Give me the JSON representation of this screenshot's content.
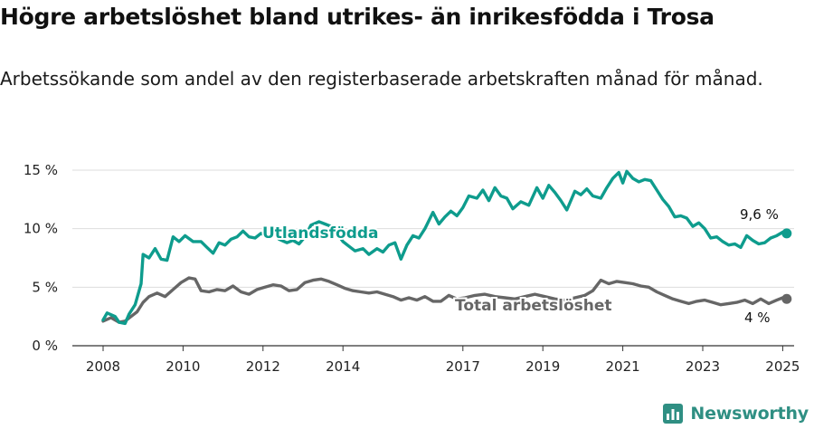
{
  "header": {
    "title": "Högre arbetslöshet bland utrikes- än inrikesfödda i Trosa",
    "subtitle": "Arbetssökande som andel av den registerbaserade arbetskraften månad för månad."
  },
  "brand": {
    "name": "Newsworthy",
    "color": "#2f8f83"
  },
  "colors": {
    "foreign": "#0e9c8d",
    "total": "#666666",
    "grid": "#dddddd",
    "axis": "#333333"
  },
  "chart_data": {
    "type": "line",
    "xlabel": "",
    "ylabel": "",
    "ylim": [
      0,
      15
    ],
    "xlim": [
      2008,
      2025.5
    ],
    "y_ticks": [
      0,
      5,
      10,
      15
    ],
    "y_tick_labels": [
      "0 %",
      "5 %",
      "10 %",
      "15 %"
    ],
    "x_ticks": [
      2008,
      2010,
      2012,
      2014,
      2017,
      2019,
      2021,
      2023,
      2025
    ],
    "x_tick_labels": [
      "2008",
      "2010",
      "2012",
      "2014",
      "2017",
      "2019",
      "2021",
      "2023",
      "2025"
    ],
    "grid": true,
    "series": [
      {
        "name": "Utlandsfödda",
        "end_label": "9,6 %",
        "points": [
          [
            2008.0,
            2.2
          ],
          [
            2008.1,
            2.8
          ],
          [
            2008.3,
            2.5
          ],
          [
            2008.4,
            2.0
          ],
          [
            2008.55,
            1.9
          ],
          [
            2008.65,
            2.7
          ],
          [
            2008.8,
            3.5
          ],
          [
            2008.95,
            5.3
          ],
          [
            2009.0,
            7.8
          ],
          [
            2009.15,
            7.5
          ],
          [
            2009.3,
            8.3
          ],
          [
            2009.45,
            7.4
          ],
          [
            2009.6,
            7.3
          ],
          [
            2009.75,
            9.3
          ],
          [
            2009.9,
            8.9
          ],
          [
            2010.05,
            9.4
          ],
          [
            2010.25,
            8.9
          ],
          [
            2010.45,
            8.9
          ],
          [
            2010.6,
            8.4
          ],
          [
            2010.75,
            7.9
          ],
          [
            2010.9,
            8.8
          ],
          [
            2011.05,
            8.6
          ],
          [
            2011.2,
            9.1
          ],
          [
            2011.35,
            9.3
          ],
          [
            2011.5,
            9.8
          ],
          [
            2011.65,
            9.3
          ],
          [
            2011.8,
            9.2
          ],
          [
            2011.95,
            9.6
          ],
          [
            2012.1,
            9.3
          ],
          [
            2012.25,
            9.7
          ],
          [
            2012.4,
            9.1
          ],
          [
            2012.6,
            8.8
          ],
          [
            2012.75,
            9.0
          ],
          [
            2012.9,
            8.7
          ],
          [
            2013.05,
            9.3
          ],
          [
            2013.2,
            10.3
          ],
          [
            2013.4,
            10.6
          ],
          [
            2013.55,
            10.4
          ],
          [
            2013.7,
            10.2
          ],
          [
            2013.85,
            9.6
          ],
          [
            2014.0,
            8.9
          ],
          [
            2014.15,
            8.5
          ],
          [
            2014.3,
            8.1
          ],
          [
            2014.5,
            8.3
          ],
          [
            2014.65,
            7.8
          ],
          [
            2014.85,
            8.3
          ],
          [
            2015.0,
            8.0
          ],
          [
            2015.15,
            8.6
          ],
          [
            2015.3,
            8.8
          ],
          [
            2015.45,
            7.4
          ],
          [
            2015.6,
            8.6
          ],
          [
            2015.75,
            9.4
          ],
          [
            2015.9,
            9.2
          ],
          [
            2016.05,
            10.0
          ],
          [
            2016.25,
            11.4
          ],
          [
            2016.4,
            10.4
          ],
          [
            2016.55,
            11.0
          ],
          [
            2016.7,
            11.5
          ],
          [
            2016.85,
            11.1
          ],
          [
            2017.0,
            11.8
          ],
          [
            2017.15,
            12.8
          ],
          [
            2017.35,
            12.6
          ],
          [
            2017.5,
            13.3
          ],
          [
            2017.65,
            12.4
          ],
          [
            2017.8,
            13.5
          ],
          [
            2017.95,
            12.8
          ],
          [
            2018.1,
            12.6
          ],
          [
            2018.25,
            11.7
          ],
          [
            2018.45,
            12.3
          ],
          [
            2018.65,
            12.0
          ],
          [
            2018.85,
            13.5
          ],
          [
            2019.0,
            12.6
          ],
          [
            2019.15,
            13.7
          ],
          [
            2019.3,
            13.1
          ],
          [
            2019.45,
            12.4
          ],
          [
            2019.6,
            11.6
          ],
          [
            2019.8,
            13.2
          ],
          [
            2019.95,
            12.9
          ],
          [
            2020.1,
            13.4
          ],
          [
            2020.25,
            12.8
          ],
          [
            2020.45,
            12.6
          ],
          [
            2020.6,
            13.5
          ],
          [
            2020.75,
            14.3
          ],
          [
            2020.9,
            14.8
          ],
          [
            2021.0,
            13.9
          ],
          [
            2021.1,
            14.9
          ],
          [
            2021.25,
            14.3
          ],
          [
            2021.4,
            14.0
          ],
          [
            2021.55,
            14.2
          ],
          [
            2021.7,
            14.1
          ],
          [
            2021.85,
            13.3
          ],
          [
            2022.0,
            12.5
          ],
          [
            2022.15,
            11.9
          ],
          [
            2022.3,
            11.0
          ],
          [
            2022.45,
            11.1
          ],
          [
            2022.6,
            10.9
          ],
          [
            2022.75,
            10.2
          ],
          [
            2022.9,
            10.5
          ],
          [
            2023.05,
            10.0
          ],
          [
            2023.2,
            9.2
          ],
          [
            2023.35,
            9.3
          ],
          [
            2023.5,
            8.9
          ],
          [
            2023.65,
            8.6
          ],
          [
            2023.8,
            8.7
          ],
          [
            2023.95,
            8.4
          ],
          [
            2024.1,
            9.4
          ],
          [
            2024.25,
            9.0
          ],
          [
            2024.4,
            8.7
          ],
          [
            2024.55,
            8.8
          ],
          [
            2024.7,
            9.2
          ],
          [
            2024.85,
            9.4
          ],
          [
            2025.0,
            9.7
          ],
          [
            2025.1,
            9.6
          ]
        ]
      },
      {
        "name": "Total arbetslöshet",
        "end_label": "4 %",
        "points": [
          [
            2008.0,
            2.1
          ],
          [
            2008.2,
            2.4
          ],
          [
            2008.4,
            2.0
          ],
          [
            2008.55,
            2.1
          ],
          [
            2008.7,
            2.5
          ],
          [
            2008.85,
            2.9
          ],
          [
            2009.0,
            3.7
          ],
          [
            2009.15,
            4.2
          ],
          [
            2009.35,
            4.5
          ],
          [
            2009.55,
            4.2
          ],
          [
            2009.75,
            4.8
          ],
          [
            2009.95,
            5.4
          ],
          [
            2010.15,
            5.8
          ],
          [
            2010.3,
            5.7
          ],
          [
            2010.45,
            4.7
          ],
          [
            2010.65,
            4.6
          ],
          [
            2010.85,
            4.8
          ],
          [
            2011.05,
            4.7
          ],
          [
            2011.25,
            5.1
          ],
          [
            2011.45,
            4.6
          ],
          [
            2011.65,
            4.4
          ],
          [
            2011.85,
            4.8
          ],
          [
            2012.05,
            5.0
          ],
          [
            2012.25,
            5.2
          ],
          [
            2012.45,
            5.1
          ],
          [
            2012.65,
            4.7
          ],
          [
            2012.85,
            4.8
          ],
          [
            2013.05,
            5.4
          ],
          [
            2013.25,
            5.6
          ],
          [
            2013.45,
            5.7
          ],
          [
            2013.65,
            5.5
          ],
          [
            2013.85,
            5.2
          ],
          [
            2014.05,
            4.9
          ],
          [
            2014.25,
            4.7
          ],
          [
            2014.45,
            4.6
          ],
          [
            2014.65,
            4.5
          ],
          [
            2014.85,
            4.6
          ],
          [
            2015.05,
            4.4
          ],
          [
            2015.25,
            4.2
          ],
          [
            2015.45,
            3.9
          ],
          [
            2015.65,
            4.1
          ],
          [
            2015.85,
            3.9
          ],
          [
            2016.05,
            4.2
          ],
          [
            2016.25,
            3.8
          ],
          [
            2016.45,
            3.8
          ],
          [
            2016.65,
            4.3
          ],
          [
            2016.85,
            4.0
          ],
          [
            2017.05,
            4.1
          ],
          [
            2017.3,
            4.3
          ],
          [
            2017.55,
            4.4
          ],
          [
            2017.8,
            4.2
          ],
          [
            2018.05,
            4.1
          ],
          [
            2018.3,
            4.0
          ],
          [
            2018.55,
            4.2
          ],
          [
            2018.8,
            4.4
          ],
          [
            2019.05,
            4.2
          ],
          [
            2019.3,
            4.0
          ],
          [
            2019.55,
            3.9
          ],
          [
            2019.8,
            4.1
          ],
          [
            2020.05,
            4.3
          ],
          [
            2020.25,
            4.7
          ],
          [
            2020.45,
            5.6
          ],
          [
            2020.65,
            5.3
          ],
          [
            2020.85,
            5.5
          ],
          [
            2021.05,
            5.4
          ],
          [
            2021.25,
            5.3
          ],
          [
            2021.45,
            5.1
          ],
          [
            2021.65,
            5.0
          ],
          [
            2021.85,
            4.6
          ],
          [
            2022.05,
            4.3
          ],
          [
            2022.25,
            4.0
          ],
          [
            2022.45,
            3.8
          ],
          [
            2022.65,
            3.6
          ],
          [
            2022.85,
            3.8
          ],
          [
            2023.05,
            3.9
          ],
          [
            2023.25,
            3.7
          ],
          [
            2023.45,
            3.5
          ],
          [
            2023.65,
            3.6
          ],
          [
            2023.85,
            3.7
          ],
          [
            2024.05,
            3.9
          ],
          [
            2024.25,
            3.6
          ],
          [
            2024.45,
            4.0
          ],
          [
            2024.65,
            3.6
          ],
          [
            2024.85,
            3.9
          ],
          [
            2025.0,
            4.1
          ],
          [
            2025.1,
            4.0
          ]
        ]
      }
    ]
  }
}
